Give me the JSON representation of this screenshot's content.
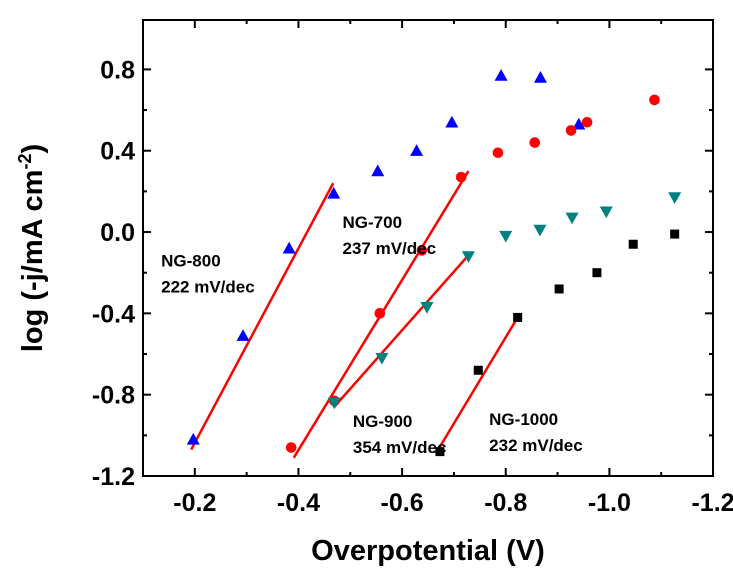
{
  "chart_data": {
    "type": "scatter",
    "xlabel": "Overpotential (V)",
    "ylabel_main": "log (-j/mA cm",
    "ylabel_sup": "-2",
    "ylabel_close": ")",
    "xlim": [
      -0.1,
      -1.2
    ],
    "ylim": [
      -1.2,
      1.0
    ],
    "x_ticks": [
      -0.2,
      -0.4,
      -0.6,
      -0.8,
      -1.0,
      -1.2
    ],
    "x_tick_labels": [
      "-0.2",
      "-0.4",
      "-0.6",
      "-0.8",
      "-1.0",
      "-1.2"
    ],
    "y_ticks": [
      -1.2,
      -0.8,
      -0.4,
      0.0,
      0.4,
      0.8
    ],
    "y_tick_labels": [
      "-1.2",
      "-0.8",
      "-0.4",
      "0.0",
      "0.4",
      "0.8"
    ],
    "grid": false,
    "series": [
      {
        "marker": "triangle-up",
        "color": "#0000ff",
        "x": [
          -0.197,
          -0.293,
          -0.382,
          -0.468,
          -0.553,
          -0.628,
          -0.696,
          -0.791,
          -0.867,
          -0.941
        ],
        "y": [
          -1.02,
          -0.51,
          -0.08,
          0.19,
          0.3,
          0.4,
          0.54,
          0.77,
          0.76,
          0.53
        ],
        "fit": {
          "x": [
            -0.193,
            -0.467
          ],
          "y": [
            -1.07,
            0.24
          ],
          "color": "#ff0000"
        }
      },
      {
        "marker": "circle",
        "color": "#ff0000",
        "x": [
          -0.386,
          -0.469,
          -0.557,
          -0.638,
          -0.714,
          -0.785,
          -0.856,
          -0.926,
          -0.957,
          -1.087
        ],
        "y": [
          -1.06,
          -0.83,
          -0.4,
          -0.09,
          0.27,
          0.39,
          0.44,
          0.5,
          0.54,
          0.65
        ],
        "fit": {
          "x": [
            -0.391,
            -0.728
          ],
          "y": [
            -1.11,
            0.3
          ],
          "color": "#ff0000"
        }
      },
      {
        "marker": "triangle-down",
        "color": "#008080",
        "x": [
          -0.469,
          -0.561,
          -0.648,
          -0.728,
          -0.8,
          -0.866,
          -0.928,
          -0.994,
          -1.126
        ],
        "y": [
          -0.84,
          -0.62,
          -0.37,
          -0.12,
          -0.02,
          0.01,
          0.07,
          0.1,
          0.17
        ],
        "fit": {
          "x": [
            -0.469,
            -0.726
          ],
          "y": [
            -0.86,
            -0.12
          ],
          "color": "#ff0000"
        }
      },
      {
        "marker": "square",
        "color": "#000000",
        "x": [
          -0.673,
          -0.747,
          -0.823,
          -0.903,
          -0.976,
          -1.046,
          -1.126
        ],
        "y": [
          -1.08,
          -0.68,
          -0.42,
          -0.28,
          -0.2,
          -0.06,
          -0.01
        ],
        "fit": {
          "x": [
            -0.665,
            -0.823
          ],
          "y": [
            -1.09,
            -0.42
          ],
          "color": "#ff0000"
        }
      }
    ],
    "annotations": [
      {
        "line1": "NG-800",
        "line2": "222 mV/dec",
        "at": [
          -0.135,
          -0.17
        ]
      },
      {
        "line1": "NG-700",
        "line2": "237 mV/dec",
        "at": [
          -0.485,
          0.02
        ]
      },
      {
        "line1": "NG-900",
        "line2": "354 mV/dec",
        "at": [
          -0.505,
          -0.96
        ]
      },
      {
        "line1": "NG-1000",
        "line2": "232 mV/dec",
        "at": [
          -0.768,
          -0.95
        ]
      }
    ]
  }
}
